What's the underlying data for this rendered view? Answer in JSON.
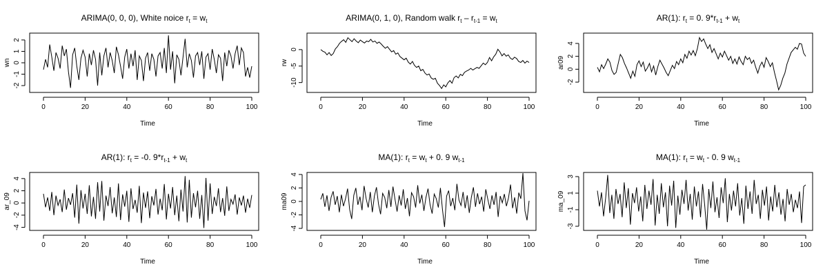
{
  "chart_data": [
    {
      "type": "line",
      "title": {
        "pre": "ARIMA(0, 0, 0), White noice r",
        "s1": "t",
        "m1": " = w",
        "s2": "t",
        "m2": "",
        "s3": "",
        "m3": "",
        "s4": "",
        "post": ""
      },
      "xlabel": "Time",
      "ylabel": "wn",
      "xlim": [
        0,
        100
      ],
      "ylim": [
        -2.6,
        2.6
      ],
      "xticks": [
        0,
        20,
        40,
        60,
        80,
        100
      ],
      "yticks": [
        -2,
        -1,
        0,
        1,
        2
      ],
      "grid": false,
      "series": [
        {
          "values": [
            -0.6,
            0.3,
            -0.4,
            1.6,
            0.5,
            -0.7,
            0.9,
            0.4,
            -0.5,
            1.5,
            0.6,
            1.2,
            -0.8,
            -2.2,
            0.7,
            1.3,
            -0.3,
            -1.5,
            0.4,
            1.1,
            0.5,
            -1.2,
            0.8,
            -0.2,
            1.1,
            0.3,
            -2.0,
            0.9,
            -1.1,
            0.6,
            1.3,
            -0.4,
            0.9,
            0.2,
            -0.9,
            1.4,
            0.7,
            -0.3,
            -1.4,
            0.5,
            1.2,
            -0.5,
            0.8,
            -0.3,
            1.1,
            -1.5,
            0.6,
            0.2,
            -1.6,
            0.4,
            0.9,
            -0.7,
            0.8,
            0.3,
            -1.2,
            0.6,
            0.9,
            -0.5,
            1.3,
            -0.9,
            2.4,
            -0.6,
            1.0,
            -1.8,
            0.7,
            0.3,
            -1.1,
            0.5,
            2.1,
            -0.4,
            0.8,
            0.2,
            -1.3,
            0.6,
            0.9,
            -0.2,
            1.0,
            -1.4,
            0.5,
            0.8,
            -0.6,
            1.2,
            0.3,
            -0.9,
            0.7,
            0.4,
            -1.6,
            0.9,
            -0.3,
            1.1,
            0.6,
            -0.5,
            0.8,
            1.5,
            -0.2,
            1.3,
            0.9,
            -1.2,
            -0.4,
            -1.3,
            -0.3
          ]
        }
      ]
    },
    {
      "type": "line",
      "title": {
        "pre": "ARIMA(0, 1, 0), Random walk r",
        "s1": "t",
        "m1": " – r",
        "s2": "t-1",
        "m2": " = w",
        "s3": "t",
        "m3": "",
        "s4": "",
        "post": ""
      },
      "xlabel": "Time",
      "ylabel": "rw",
      "xlim": [
        0,
        100
      ],
      "ylim": [
        -13,
        5
      ],
      "xticks": [
        0,
        20,
        40,
        60,
        80,
        100
      ],
      "yticks": [
        -10,
        -5,
        0
      ],
      "grid": false,
      "series": [
        {
          "values": [
            0.0,
            -0.5,
            -0.8,
            -1.6,
            -0.9,
            -1.8,
            -1.2,
            0.2,
            0.9,
            1.9,
            2.5,
            3.0,
            2.2,
            3.6,
            3.0,
            2.4,
            3.3,
            2.6,
            2.1,
            2.9,
            2.4,
            2.0,
            2.6,
            2.4,
            3.1,
            2.3,
            2.6,
            1.9,
            2.3,
            1.7,
            1.0,
            0.4,
            0.9,
            0.1,
            -0.7,
            -0.3,
            -1.4,
            -1.0,
            -2.1,
            -2.6,
            -3.1,
            -2.6,
            -3.8,
            -4.4,
            -3.6,
            -4.8,
            -5.4,
            -5.0,
            -6.4,
            -6.0,
            -7.1,
            -7.7,
            -7.4,
            -8.6,
            -9.0,
            -8.7,
            -10.2,
            -10.9,
            -11.8,
            -10.7,
            -11.3,
            -10.1,
            -9.4,
            -10.2,
            -8.5,
            -8.0,
            -8.6,
            -7.5,
            -7.9,
            -6.9,
            -6.5,
            -6.2,
            -5.7,
            -6.2,
            -5.8,
            -5.4,
            -5.7,
            -4.9,
            -4.1,
            -4.6,
            -3.9,
            -2.4,
            -3.4,
            -2.2,
            -1.4,
            0.1,
            -0.7,
            -1.9,
            -1.2,
            -2.0,
            -1.6,
            -2.6,
            -3.0,
            -2.3,
            -2.7,
            -3.6,
            -3.9,
            -3.3,
            -4.1,
            -3.5,
            -3.9
          ]
        }
      ]
    },
    {
      "type": "line",
      "title": {
        "pre": "AR(1): r",
        "s1": "t",
        "m1": " = 0. 9*r",
        "s2": "t-1",
        "m2": " + w",
        "s3": "t",
        "m3": "",
        "s4": "",
        "post": ""
      },
      "xlabel": "Time",
      "ylabel": "ar09",
      "xlim": [
        0,
        100
      ],
      "ylim": [
        -3.6,
        5.6
      ],
      "xticks": [
        0,
        20,
        40,
        60,
        80,
        100
      ],
      "yticks": [
        -2,
        0,
        2,
        4
      ],
      "grid": false,
      "series": [
        {
          "values": [
            0.3,
            -0.4,
            0.7,
            0.1,
            0.8,
            1.6,
            1.1,
            -0.2,
            -0.8,
            -0.5,
            0.9,
            2.3,
            1.8,
            0.9,
            0.2,
            -0.6,
            -1.4,
            -0.3,
            -1.1,
            0.7,
            1.3,
            0.4,
            1.1,
            -0.3,
            0.2,
            0.9,
            -0.4,
            0.5,
            -0.9,
            0.4,
            1.4,
            0.8,
            0.2,
            -0.5,
            -1.0,
            -0.2,
            0.6,
            0.1,
            1.2,
            0.7,
            1.6,
            1.0,
            2.3,
            1.7,
            2.8,
            2.2,
            2.9,
            2.1,
            3.2,
            4.9,
            4.3,
            4.7,
            3.9,
            3.2,
            3.8,
            2.6,
            3.2,
            2.4,
            1.6,
            2.5,
            1.9,
            2.8,
            2.1,
            1.4,
            2.0,
            0.9,
            1.6,
            0.8,
            1.9,
            1.2,
            0.7,
            2.0,
            1.5,
            1.8,
            0.9,
            1.4,
            0.3,
            -0.6,
            0.5,
            1.1,
            0.3,
            1.8,
            1.2,
            0.4,
            1.0,
            -0.5,
            -1.8,
            -3.2,
            -2.5,
            -1.4,
            -0.6,
            0.8,
            1.7,
            2.6,
            3.0,
            3.4,
            3.1,
            4.0,
            3.9,
            2.5,
            2.0
          ]
        }
      ]
    },
    {
      "type": "line",
      "title": {
        "pre": "AR(1): r",
        "s1": "t",
        "m1": " = -0. 9*r",
        "s2": "t-1",
        "m2": " + w",
        "s3": "t",
        "m3": "",
        "s4": "",
        "post": ""
      },
      "xlabel": "Time",
      "ylabel": "ar_09",
      "xlim": [
        0,
        100
      ],
      "ylim": [
        -4.5,
        5.0
      ],
      "xticks": [
        0,
        20,
        40,
        60,
        80,
        100
      ],
      "yticks": [
        -4,
        -2,
        0,
        2,
        4
      ],
      "grid": false,
      "series": [
        {
          "values": [
            1.5,
            -0.7,
            0.9,
            -1.3,
            1.8,
            -2.0,
            1.2,
            -0.4,
            0.6,
            -1.5,
            2.2,
            -1.1,
            0.8,
            -0.3,
            1.6,
            -2.4,
            3.0,
            -3.4,
            2.1,
            -0.9,
            1.5,
            -1.8,
            2.9,
            -2.2,
            1.0,
            -2.6,
            3.4,
            -1.4,
            3.6,
            -2.9,
            1.2,
            -0.5,
            2.6,
            -1.7,
            0.9,
            -2.3,
            3.2,
            -2.8,
            1.4,
            -0.6,
            2.0,
            -3.1,
            2.4,
            -1.0,
            0.5,
            -1.6,
            2.8,
            -3.3,
            1.7,
            -0.8,
            1.9,
            -2.5,
            1.1,
            -0.4,
            2.3,
            -1.9,
            0.7,
            -1.2,
            3.1,
            -2.7,
            1.5,
            -0.9,
            2.6,
            -2.0,
            1.2,
            -3.0,
            2.2,
            -1.4,
            4.4,
            -3.2,
            3.8,
            -2.4,
            1.6,
            -0.7,
            2.0,
            -2.6,
            1.3,
            -4.1,
            4.1,
            -2.9,
            3.2,
            -1.8,
            1.0,
            -0.5,
            2.4,
            -1.5,
            0.8,
            -2.1,
            2.7,
            -1.3,
            0.6,
            -0.2,
            1.4,
            -1.9,
            0.9,
            -0.4,
            1.2,
            -1.6,
            0.7,
            -0.8,
            1.3
          ]
        }
      ]
    },
    {
      "type": "line",
      "title": {
        "pre": "MA(1): r",
        "s1": "t",
        "m1": " = w",
        "s2": "t",
        "m2": " + 0. 9 w",
        "s3": "t-1",
        "m3": "",
        "s4": "",
        "post": ""
      },
      "xlabel": "Time",
      "ylabel": "ma09",
      "xlim": [
        0,
        100
      ],
      "ylim": [
        -4.3,
        4.3
      ],
      "xticks": [
        0,
        20,
        40,
        60,
        80,
        100
      ],
      "yticks": [
        -4,
        -2,
        0,
        2,
        4
      ],
      "grid": false,
      "series": [
        {
          "values": [
            0.3,
            1.2,
            -0.8,
            0.9,
            -1.4,
            0.6,
            1.5,
            -0.5,
            0.8,
            -1.6,
            1.0,
            -0.7,
            0.4,
            1.9,
            -1.2,
            -2.6,
            0.9,
            2.0,
            -0.5,
            0.7,
            -1.3,
            2.3,
            0.4,
            -0.9,
            1.4,
            -1.6,
            0.8,
            2.1,
            -0.4,
            -1.9,
            1.2,
            0.6,
            -1.0,
            1.7,
            -0.8,
            2.2,
            0.3,
            -1.5,
            0.9,
            -0.6,
            1.8,
            -1.1,
            0.5,
            -2.2,
            1.3,
            0.7,
            -0.9,
            2.4,
            -0.3,
            1.0,
            -1.4,
            0.6,
            1.9,
            -0.5,
            -1.8,
            1.1,
            0.4,
            -0.9,
            2.0,
            -1.2,
            -3.8,
            0.8,
            1.6,
            -0.7,
            0.5,
            -1.3,
            2.6,
            0.2,
            -0.6,
            1.4,
            -1.0,
            0.9,
            -1.7,
            0.6,
            2.1,
            -0.8,
            1.2,
            -0.4,
            0.7,
            -1.5,
            1.8,
            0.3,
            -1.1,
            0.9,
            -0.5,
            1.4,
            -2.3,
            0.8,
            -0.2,
            1.1,
            -0.7,
            0.5,
            2.5,
            -1.0,
            0.6,
            -1.8,
            1.3,
            0.4,
            4.2,
            -1.4,
            -2.8,
            0.1
          ]
        }
      ]
    },
    {
      "type": "line",
      "title": {
        "pre": "MA(1): r",
        "s1": "t",
        "m1": " = w",
        "s2": "t",
        "m2": " - 0. 9 w",
        "s3": "t-1",
        "m3": "",
        "s4": "",
        "post": ""
      },
      "xlabel": "Time",
      "ylabel": "ma_09",
      "xlim": [
        0,
        100
      ],
      "ylim": [
        -3.5,
        3.5
      ],
      "xticks": [
        0,
        20,
        40,
        60,
        80,
        100
      ],
      "yticks": [
        -3,
        -1,
        1,
        3
      ],
      "grid": false,
      "series": [
        {
          "values": [
            1.3,
            -0.6,
            1.1,
            -1.8,
            0.4,
            3.2,
            -1.4,
            0.8,
            -2.1,
            1.5,
            -0.3,
            0.9,
            -1.9,
            2.3,
            -0.8,
            1.6,
            -2.8,
            1.0,
            -0.2,
            1.7,
            -1.2,
            0.6,
            -2.4,
            2.0,
            -0.9,
            1.3,
            -0.4,
            2.7,
            -2.9,
            0.8,
            -1.5,
            2.2,
            -0.7,
            1.1,
            -3.0,
            1.9,
            -0.5,
            2.5,
            -3.2,
            0.7,
            -1.6,
            1.4,
            -0.3,
            2.6,
            -1.1,
            0.9,
            -2.2,
            1.8,
            -0.6,
            1.2,
            -1.9,
            2.1,
            -0.4,
            -3.4,
            1.5,
            -0.8,
            2.4,
            -1.3,
            0.5,
            -2.0,
            1.7,
            -0.2,
            2.8,
            -2.5,
            0.9,
            -1.1,
            1.3,
            -0.6,
            2.2,
            -1.7,
            0.4,
            -2.7,
            1.9,
            -0.9,
            1.2,
            -1.5,
            2.6,
            -0.3,
            0.8,
            -2.1,
            1.4,
            -0.5,
            1.8,
            -2.3,
            0.6,
            -1.2,
            2.0,
            -0.7,
            1.1,
            -1.6,
            0.3,
            -2.4,
            1.5,
            -0.4,
            0.9,
            -1.3,
            0.2,
            -0.8,
            1.2,
            -2.6,
            1.8,
            2.0
          ]
        }
      ]
    }
  ]
}
